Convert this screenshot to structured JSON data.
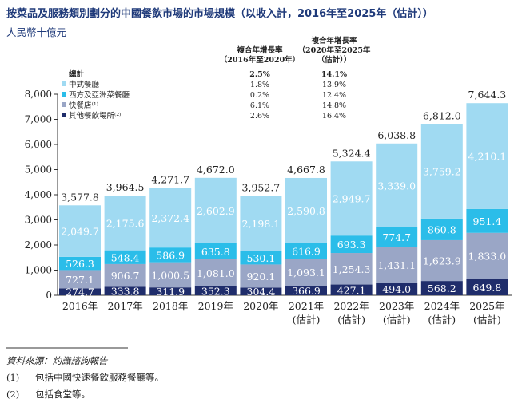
{
  "title": "按菜品及服務類別劃分的中國餐飲市場的市場規模（以收入計，2016年至2025年（估計））",
  "unit": "人民幣十億元",
  "legend": {
    "header_cagr1": [
      "複合年增長率",
      "（2016年至2020年）"
    ],
    "header_cagr2": [
      "複合年增長率",
      "（2020年至2025年",
      "（估計））"
    ],
    "total": {
      "label": "總計",
      "cagr1": "2.5%",
      "cagr2": "14.1%"
    },
    "rows": [
      {
        "label": "中式餐廳",
        "cagr1": "1.8%",
        "cagr2": "13.9%"
      },
      {
        "label": "西方及亞洲菜餐廳",
        "cagr1": "0.2%",
        "cagr2": "12.4%"
      },
      {
        "label": "快餐店⁽¹⁾",
        "cagr1": "6.1%",
        "cagr2": "14.8%"
      },
      {
        "label": "其他餐飲場所⁽²⁾",
        "cagr1": "2.6%",
        "cagr2": "16.4%"
      }
    ]
  },
  "chart_data": {
    "type": "bar",
    "stacked": true,
    "categories": [
      "2016年",
      "2017年",
      "2018年",
      "2019年",
      "2020年",
      "2021年\n(估計)",
      "2022年\n(估計)",
      "2023年\n(估計)",
      "2024年\n(估計)",
      "2025年\n(估計)"
    ],
    "ylim": [
      0,
      8000
    ],
    "yticks": [
      "0",
      "1,000",
      "2,000",
      "3,000",
      "4,000",
      "5,000",
      "6,000",
      "7,000",
      "8,000"
    ],
    "series": [
      {
        "name": "其他餐飲場所",
        "color": "#1f2d6b",
        "values": [
          274.7,
          333.8,
          311.9,
          352.3,
          304.4,
          366.9,
          427.1,
          494.0,
          568.2,
          649.8
        ]
      },
      {
        "name": "快餐店",
        "color": "#9aa6c6",
        "values": [
          727.1,
          906.7,
          1000.5,
          1081.0,
          920.1,
          1093.1,
          1254.3,
          1431.1,
          1623.9,
          1833.0
        ]
      },
      {
        "name": "西方及亞洲菜餐廳",
        "color": "#2bbde9",
        "values": [
          526.3,
          548.4,
          586.9,
          635.8,
          530.1,
          616.9,
          693.3,
          774.7,
          860.8,
          951.4
        ]
      },
      {
        "name": "中式餐廳",
        "color": "#a0daf2",
        "values": [
          2049.7,
          2175.6,
          2372.4,
          2602.9,
          2198.1,
          2590.8,
          2949.7,
          3339.0,
          3759.2,
          4210.1
        ]
      }
    ],
    "totals": [
      3577.8,
      3964.5,
      4271.7,
      4672.0,
      3952.7,
      4667.8,
      5324.4,
      6038.8,
      6812.0,
      7644.3
    ]
  },
  "notes": {
    "source": "資料來源：灼識諮詢報告",
    "items": [
      {
        "num": "(1)",
        "text": "包括中國快速餐飲服務餐廳等。"
      },
      {
        "num": "(2)",
        "text": "包括食堂等。"
      }
    ]
  }
}
